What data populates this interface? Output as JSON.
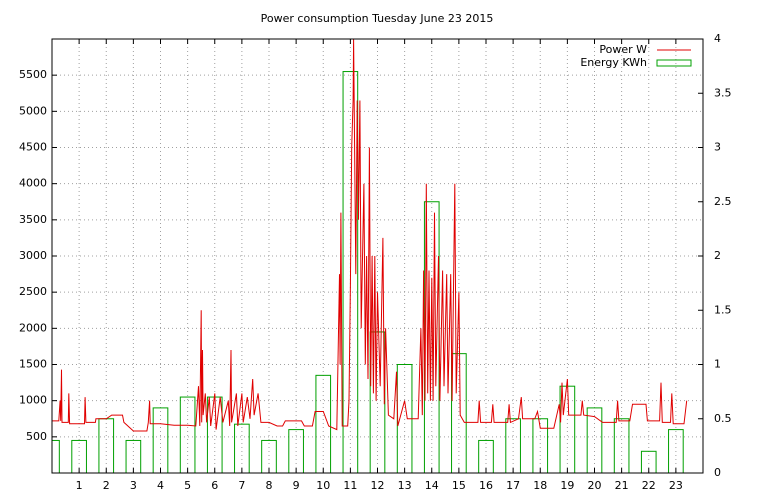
{
  "chart_data": {
    "type": "line",
    "title": "Power consumption Tuesday June 23 2015",
    "xlim": [
      0,
      24
    ],
    "xticks": [
      1,
      2,
      3,
      4,
      5,
      6,
      7,
      8,
      9,
      10,
      11,
      12,
      13,
      14,
      15,
      16,
      17,
      18,
      19,
      20,
      21,
      22,
      23
    ],
    "ylim": [
      0,
      6000
    ],
    "yticks": [
      500,
      1000,
      1500,
      2000,
      2500,
      3000,
      3500,
      4000,
      4500,
      5000,
      5500
    ],
    "y2lim": [
      0,
      4
    ],
    "y2ticks": [
      0,
      0.5,
      1,
      1.5,
      2,
      2.5,
      3,
      3.5,
      4
    ],
    "grid": true,
    "legend": "top-right",
    "series": [
      {
        "name": "Power W",
        "color": "#e00000",
        "x": [
          0,
          0.25,
          0.3,
          0.32,
          0.35,
          0.37,
          0.6,
          0.62,
          0.65,
          1.0,
          1.2,
          1.22,
          1.25,
          1.6,
          1.62,
          2.0,
          2.2,
          2.6,
          2.65,
          3.0,
          3.5,
          3.55,
          3.6,
          3.62,
          4.0,
          4.5,
          5.0,
          5.3,
          5.4,
          5.45,
          5.5,
          5.52,
          5.55,
          5.57,
          5.65,
          5.7,
          5.8,
          5.85,
          6.0,
          6.05,
          6.2,
          6.3,
          6.5,
          6.55,
          6.6,
          6.62,
          6.8,
          6.85,
          7.0,
          7.05,
          7.2,
          7.3,
          7.4,
          7.45,
          7.6,
          7.7,
          8.0,
          8.3,
          8.5,
          8.6,
          9.0,
          9.2,
          9.3,
          9.6,
          9.7,
          10.0,
          10.2,
          10.5,
          10.6,
          10.62,
          10.65,
          10.7,
          10.9,
          10.95,
          11.0,
          11.05,
          11.1,
          11.12,
          11.15,
          11.2,
          11.25,
          11.3,
          11.35,
          11.4,
          11.5,
          11.55,
          11.6,
          11.65,
          11.7,
          11.75,
          11.8,
          11.85,
          11.9,
          11.95,
          12.0,
          12.1,
          12.2,
          12.25,
          12.3,
          12.4,
          12.6,
          12.7,
          12.75,
          13.0,
          13.1,
          13.5,
          13.6,
          13.65,
          13.7,
          13.75,
          13.8,
          13.85,
          13.9,
          13.95,
          14.0,
          14.05,
          14.1,
          14.15,
          14.25,
          14.3,
          14.4,
          14.45,
          14.55,
          14.6,
          14.7,
          14.75,
          14.85,
          14.9,
          15.0,
          15.05,
          15.2,
          15.5,
          15.7,
          15.75,
          15.8,
          16.2,
          16.25,
          16.3,
          16.8,
          16.85,
          16.9,
          17.2,
          17.3,
          17.35,
          17.8,
          17.9,
          18.0,
          18.5,
          18.7,
          18.75,
          18.8,
          18.85,
          19.0,
          19.05,
          19.5,
          19.55,
          19.6,
          20.0,
          20.3,
          20.8,
          20.85,
          20.9,
          21.3,
          21.4,
          21.9,
          21.95,
          22.4,
          22.45,
          22.5,
          22.8,
          22.85,
          22.9,
          23.3,
          23.4
        ],
        "values": [
          720,
          720,
          1000,
          720,
          1430,
          700,
          700,
          1100,
          680,
          680,
          680,
          1050,
          700,
          700,
          750,
          750,
          800,
          800,
          700,
          580,
          580,
          700,
          1000,
          680,
          680,
          660,
          660,
          650,
          1200,
          650,
          2250,
          700,
          1700,
          800,
          1100,
          700,
          1050,
          650,
          1100,
          600,
          1050,
          700,
          1000,
          650,
          1700,
          700,
          1100,
          650,
          1100,
          700,
          1050,
          750,
          1300,
          800,
          1100,
          700,
          700,
          650,
          650,
          720,
          720,
          720,
          650,
          650,
          850,
          850,
          650,
          600,
          2750,
          1500,
          3600,
          650,
          650,
          1000,
          2600,
          4500,
          5150,
          6000,
          4800,
          2750,
          5150,
          3500,
          5150,
          2000,
          4000,
          1500,
          3000,
          1300,
          4500,
          1200,
          3000,
          1100,
          3000,
          1000,
          2500,
          1200,
          3250,
          950,
          2000,
          800,
          750,
          1400,
          650,
          1000,
          750,
          750,
          2000,
          800,
          2800,
          1000,
          4000,
          1100,
          2800,
          1000,
          2700,
          1000,
          3600,
          1200,
          3000,
          1000,
          2800,
          1200,
          2750,
          1100,
          2750,
          1000,
          4000,
          1100,
          2500,
          800,
          700,
          700,
          700,
          1000,
          700,
          700,
          950,
          700,
          700,
          950,
          700,
          750,
          1050,
          750,
          750,
          850,
          620,
          620,
          950,
          700,
          1250,
          800,
          1300,
          800,
          800,
          1000,
          800,
          780,
          700,
          700,
          1000,
          720,
          720,
          950,
          950,
          720,
          720,
          1250,
          700,
          700,
          1100,
          680,
          680,
          1000
        ]
      },
      {
        "name": "Energy KWh",
        "color": "#00a000",
        "axis": "y2",
        "x": [
          0,
          1,
          2,
          3,
          4,
          5,
          6,
          7,
          8,
          9,
          10,
          11,
          12,
          13,
          14,
          15,
          16,
          17,
          18,
          19,
          20,
          21,
          22,
          23
        ],
        "values": [
          0.3,
          0.3,
          0.5,
          0.3,
          0.6,
          0.7,
          0.7,
          0.45,
          0.3,
          0.4,
          0.9,
          3.7,
          1.3,
          1.0,
          2.5,
          1.1,
          0.3,
          0.5,
          0.5,
          0.8,
          0.6,
          0.5,
          0.2,
          0.4
        ]
      }
    ]
  }
}
